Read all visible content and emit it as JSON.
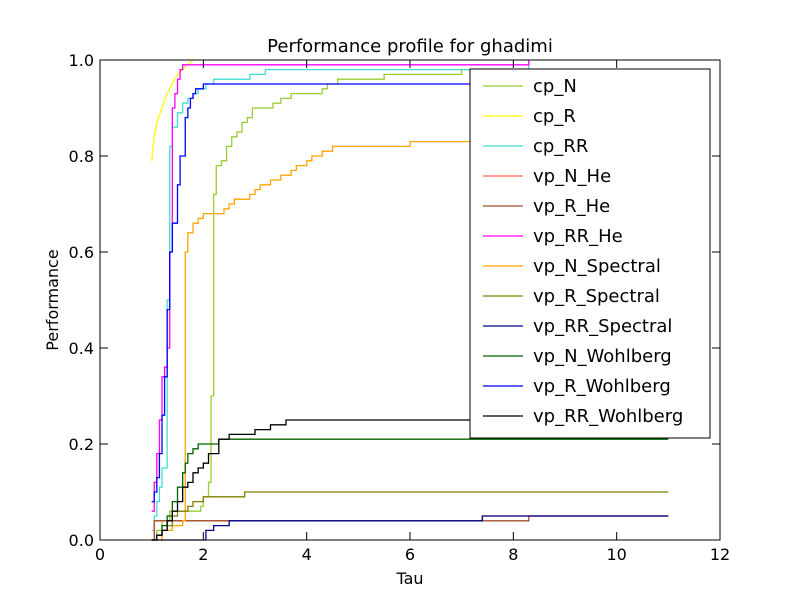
{
  "chart_data": {
    "type": "line",
    "title": "Performance profile for ghadimi",
    "xlabel": "Tau",
    "ylabel": "Performance",
    "xlim": [
      0,
      12
    ],
    "ylim": [
      0,
      1
    ],
    "xticks": [
      0,
      2,
      4,
      6,
      8,
      10,
      12
    ],
    "xtick_labels": [
      "0",
      "2",
      "4",
      "6",
      "8",
      "10",
      "12"
    ],
    "yticks": [
      0,
      0.2,
      0.4,
      0.6,
      0.8,
      1.0
    ],
    "ytick_labels": [
      "0.0",
      "0.2",
      "0.4",
      "0.6",
      "0.8",
      "1.0"
    ],
    "grid": false,
    "legend_position": "upper-right",
    "series": [
      {
        "name": "cp_N",
        "color": "#9acd32",
        "step": true,
        "points": [
          [
            1.0,
            0.0
          ],
          [
            1.1,
            0.02
          ],
          [
            1.2,
            0.04
          ],
          [
            1.35,
            0.06
          ],
          [
            1.9,
            0.06
          ],
          [
            1.95,
            0.07
          ],
          [
            2.0,
            0.09
          ],
          [
            2.1,
            0.12
          ],
          [
            2.15,
            0.3
          ],
          [
            2.2,
            0.72
          ],
          [
            2.25,
            0.78
          ],
          [
            2.35,
            0.79
          ],
          [
            2.45,
            0.82
          ],
          [
            2.55,
            0.84
          ],
          [
            2.65,
            0.85
          ],
          [
            2.75,
            0.87
          ],
          [
            2.85,
            0.88
          ],
          [
            2.95,
            0.9
          ],
          [
            3.35,
            0.91
          ],
          [
            3.5,
            0.92
          ],
          [
            3.7,
            0.93
          ],
          [
            4.3,
            0.94
          ],
          [
            4.4,
            0.95
          ],
          [
            4.6,
            0.96
          ],
          [
            5.5,
            0.97
          ],
          [
            7.0,
            0.98
          ],
          [
            8.3,
            1.0
          ]
        ]
      },
      {
        "name": "cp_R",
        "color": "#ffff00",
        "step": false,
        "points": [
          [
            1.0,
            0.79
          ],
          [
            1.05,
            0.84
          ],
          [
            1.1,
            0.87
          ],
          [
            1.2,
            0.9
          ],
          [
            1.3,
            0.93
          ],
          [
            1.4,
            0.95
          ],
          [
            1.5,
            0.97
          ],
          [
            1.6,
            0.98
          ],
          [
            1.7,
            0.99
          ],
          [
            1.8,
            1.0
          ]
        ]
      },
      {
        "name": "cp_RR",
        "color": "#40e0d0",
        "step": true,
        "points": [
          [
            1.0,
            0.02
          ],
          [
            1.05,
            0.05
          ],
          [
            1.1,
            0.08
          ],
          [
            1.15,
            0.11
          ],
          [
            1.2,
            0.15
          ],
          [
            1.3,
            0.5
          ],
          [
            1.35,
            0.82
          ],
          [
            1.4,
            0.86
          ],
          [
            1.5,
            0.89
          ],
          [
            1.6,
            0.91
          ],
          [
            1.7,
            0.92
          ],
          [
            1.8,
            0.93
          ],
          [
            1.9,
            0.94
          ],
          [
            2.05,
            0.95
          ],
          [
            2.2,
            0.96
          ],
          [
            2.9,
            0.97
          ],
          [
            3.2,
            0.98
          ],
          [
            8.3,
            1.0
          ]
        ]
      },
      {
        "name": "vp_N_He",
        "color": "#ff6347",
        "step": true,
        "points": [
          [
            1.0,
            0.0
          ],
          [
            1.05,
            0.04
          ],
          [
            7.4,
            0.04
          ],
          [
            7.4,
            0.05
          ],
          [
            11.0,
            0.05
          ]
        ]
      },
      {
        "name": "vp_R_He",
        "color": "#a0522d",
        "step": true,
        "points": [
          [
            1.0,
            0.0
          ],
          [
            1.05,
            0.04
          ],
          [
            8.3,
            0.04
          ],
          [
            8.3,
            0.05
          ],
          [
            11.0,
            0.05
          ]
        ]
      },
      {
        "name": "vp_RR_He",
        "color": "#ff00ff",
        "step": true,
        "points": [
          [
            1.0,
            0.06
          ],
          [
            1.05,
            0.12
          ],
          [
            1.1,
            0.18
          ],
          [
            1.15,
            0.25
          ],
          [
            1.2,
            0.34
          ],
          [
            1.25,
            0.36
          ],
          [
            1.3,
            0.4
          ],
          [
            1.35,
            0.6
          ],
          [
            1.4,
            0.9
          ],
          [
            1.45,
            0.93
          ],
          [
            1.5,
            0.96
          ],
          [
            1.55,
            0.98
          ],
          [
            1.6,
            0.99
          ],
          [
            8.3,
            1.0
          ]
        ]
      },
      {
        "name": "vp_N_Spectral",
        "color": "#ffa500",
        "step": true,
        "points": [
          [
            1.0,
            0.0
          ],
          [
            1.2,
            0.02
          ],
          [
            1.4,
            0.03
          ],
          [
            1.6,
            0.04
          ],
          [
            1.65,
            0.6
          ],
          [
            1.7,
            0.64
          ],
          [
            1.8,
            0.66
          ],
          [
            1.9,
            0.67
          ],
          [
            2.0,
            0.68
          ],
          [
            2.4,
            0.69
          ],
          [
            2.5,
            0.7
          ],
          [
            2.6,
            0.71
          ],
          [
            2.9,
            0.72
          ],
          [
            3.0,
            0.73
          ],
          [
            3.1,
            0.74
          ],
          [
            3.3,
            0.75
          ],
          [
            3.5,
            0.76
          ],
          [
            3.7,
            0.77
          ],
          [
            3.8,
            0.78
          ],
          [
            4.0,
            0.79
          ],
          [
            4.1,
            0.8
          ],
          [
            4.3,
            0.81
          ],
          [
            4.5,
            0.82
          ],
          [
            6.0,
            0.83
          ],
          [
            8.0,
            0.84
          ],
          [
            8.3,
            0.85
          ],
          [
            8.5,
            0.86
          ],
          [
            11.0,
            0.86
          ]
        ]
      },
      {
        "name": "vp_R_Spectral",
        "color": "#808000",
        "step": true,
        "points": [
          [
            1.0,
            0.0
          ],
          [
            1.1,
            0.01
          ],
          [
            1.2,
            0.02
          ],
          [
            1.3,
            0.03
          ],
          [
            1.4,
            0.05
          ],
          [
            1.5,
            0.06
          ],
          [
            1.7,
            0.07
          ],
          [
            1.8,
            0.08
          ],
          [
            2.0,
            0.09
          ],
          [
            2.8,
            0.1
          ],
          [
            11.0,
            0.1
          ]
        ]
      },
      {
        "name": "vp_RR_Spectral",
        "color": "#00008b",
        "step": true,
        "points": [
          [
            1.0,
            0.0
          ],
          [
            2.0,
            0.0
          ],
          [
            2.05,
            0.02
          ],
          [
            2.2,
            0.03
          ],
          [
            2.5,
            0.04
          ],
          [
            7.4,
            0.05
          ],
          [
            11.0,
            0.05
          ]
        ]
      },
      {
        "name": "vp_N_Wohlberg",
        "color": "#006400",
        "step": true,
        "points": [
          [
            1.0,
            0.0
          ],
          [
            1.1,
            0.01
          ],
          [
            1.2,
            0.03
          ],
          [
            1.3,
            0.05
          ],
          [
            1.4,
            0.08
          ],
          [
            1.5,
            0.11
          ],
          [
            1.6,
            0.14
          ],
          [
            1.65,
            0.16
          ],
          [
            1.7,
            0.18
          ],
          [
            1.8,
            0.19
          ],
          [
            1.9,
            0.2
          ],
          [
            2.3,
            0.21
          ],
          [
            11.0,
            0.21
          ]
        ]
      },
      {
        "name": "vp_R_Wohlberg",
        "color": "#0000ff",
        "step": true,
        "points": [
          [
            1.0,
            0.08
          ],
          [
            1.05,
            0.1
          ],
          [
            1.1,
            0.13
          ],
          [
            1.15,
            0.18
          ],
          [
            1.2,
            0.26
          ],
          [
            1.25,
            0.34
          ],
          [
            1.3,
            0.48
          ],
          [
            1.35,
            0.6
          ],
          [
            1.4,
            0.66
          ],
          [
            1.5,
            0.74
          ],
          [
            1.55,
            0.8
          ],
          [
            1.65,
            0.88
          ],
          [
            1.7,
            0.9
          ],
          [
            1.75,
            0.92
          ],
          [
            1.8,
            0.93
          ],
          [
            1.85,
            0.94
          ],
          [
            2.0,
            0.95
          ],
          [
            11.0,
            0.95
          ]
        ]
      },
      {
        "name": "vp_RR_Wohlberg",
        "color": "#000000",
        "step": true,
        "points": [
          [
            1.0,
            0.0
          ],
          [
            1.1,
            0.01
          ],
          [
            1.2,
            0.02
          ],
          [
            1.3,
            0.04
          ],
          [
            1.4,
            0.06
          ],
          [
            1.5,
            0.08
          ],
          [
            1.6,
            0.11
          ],
          [
            1.7,
            0.12
          ],
          [
            1.8,
            0.14
          ],
          [
            1.9,
            0.15
          ],
          [
            2.0,
            0.16
          ],
          [
            2.1,
            0.18
          ],
          [
            2.3,
            0.21
          ],
          [
            2.5,
            0.22
          ],
          [
            3.0,
            0.23
          ],
          [
            3.3,
            0.24
          ],
          [
            3.6,
            0.25
          ],
          [
            11.0,
            0.25
          ]
        ]
      }
    ]
  }
}
